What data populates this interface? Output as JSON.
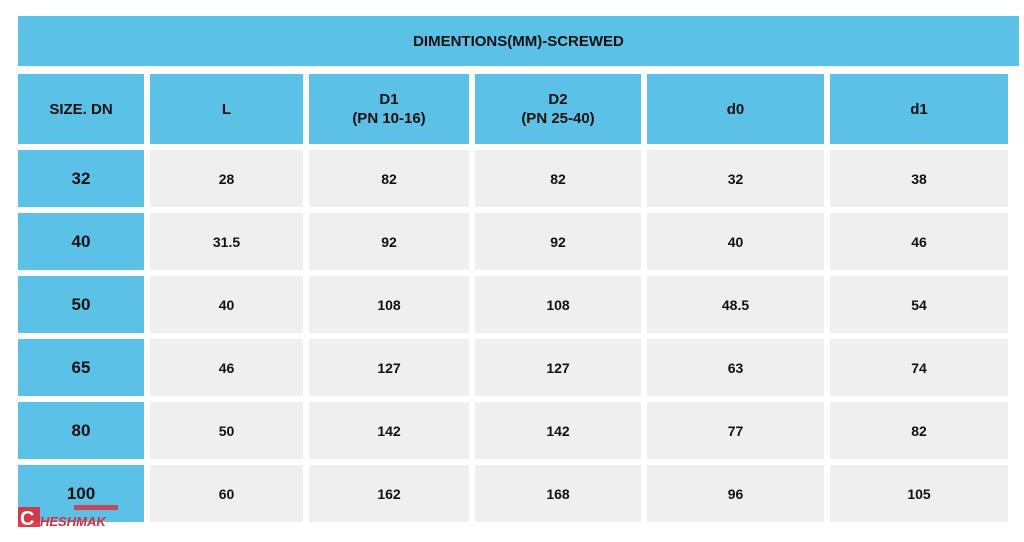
{
  "table": {
    "title": "DIMENTIONS(MM)-SCREWED",
    "headers": [
      {
        "line1": "SIZE. DN",
        "line2": ""
      },
      {
        "line1": "L",
        "line2": ""
      },
      {
        "line1": "D1",
        "line2": "(PN 10-16)"
      },
      {
        "line1": "D2",
        "line2": "(PN 25-40)"
      },
      {
        "line1": "d0",
        "line2": ""
      },
      {
        "line1": "d1",
        "line2": ""
      }
    ],
    "rows": [
      [
        "32",
        "28",
        "82",
        "82",
        "32",
        "38"
      ],
      [
        "40",
        "31.5",
        "92",
        "92",
        "40",
        "46"
      ],
      [
        "50",
        "40",
        "108",
        "108",
        "48.5",
        "54"
      ],
      [
        "65",
        "46",
        "127",
        "127",
        "63",
        "74"
      ],
      [
        "80",
        "50",
        "142",
        "142",
        "77",
        "82"
      ],
      [
        "100",
        "60",
        "162",
        "168",
        "96",
        "105"
      ]
    ]
  },
  "watermark": {
    "name": "CHESHMAK logo",
    "text": "CHESHMAK",
    "color": "#e0283a"
  },
  "colors": {
    "header": "#5bc1e7",
    "cell": "#efefef"
  }
}
